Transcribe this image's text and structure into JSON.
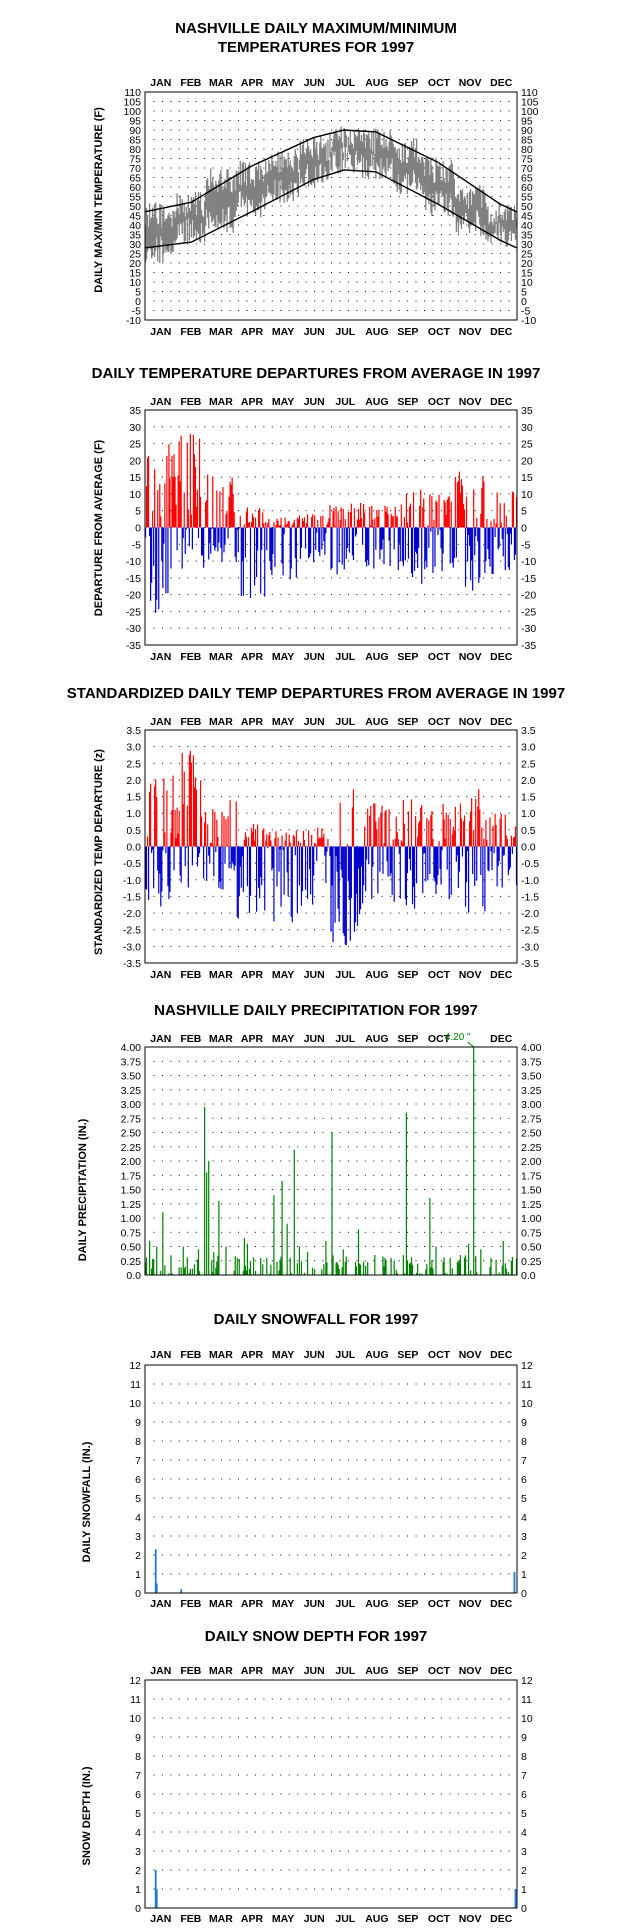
{
  "chart_data": [
    {
      "type": "line",
      "title_lines": [
        "NASHVILLE DAILY MAXIMUM/MINIMUM",
        "TEMPERATURES FOR 1997"
      ],
      "ylabel": "DAILY MAX/MIN TEMPERATURE (F)",
      "ylim": [
        -10,
        110
      ],
      "yticks": [
        "110",
        "105",
        "100",
        "95",
        "90",
        "85",
        "80",
        "75",
        "70",
        "65",
        "60",
        "55",
        "50",
        "45",
        "40",
        "35",
        "30",
        "25",
        "20",
        "15",
        "10",
        "5",
        "0",
        "-5",
        "-10"
      ],
      "months": [
        "JAN",
        "FEB",
        "MAR",
        "APR",
        "MAY",
        "JUN",
        "JUL",
        "AUG",
        "SEP",
        "OCT",
        "NOV",
        "DEC"
      ],
      "grid": true,
      "series": [
        {
          "role": "observed_max_min_range",
          "color": "#808080",
          "monthly_max_approx": [
            52,
            58,
            70,
            74,
            81,
            87,
            92,
            91,
            86,
            76,
            62,
            52
          ],
          "monthly_min_approx": [
            20,
            30,
            36,
            44,
            50,
            60,
            67,
            64,
            56,
            44,
            34,
            28
          ]
        },
        {
          "role": "normal_high",
          "color": "#000000",
          "x_day": [
            1,
            46,
            105,
            166,
            196,
            227,
            288,
            349,
            365
          ],
          "y": [
            47,
            52,
            71,
            86,
            90,
            89,
            73,
            51,
            47
          ]
        },
        {
          "role": "normal_low",
          "color": "#000000",
          "x_day": [
            1,
            46,
            105,
            166,
            196,
            227,
            288,
            349,
            365
          ],
          "y": [
            28,
            31,
            47,
            64,
            69,
            68,
            51,
            32,
            28
          ]
        }
      ]
    },
    {
      "type": "bar",
      "title": "DAILY TEMPERATURE DEPARTURES FROM AVERAGE IN 1997",
      "ylabel": "DEPARTURE FROM AVERAGE (F)",
      "ylim": [
        -35,
        35
      ],
      "yticks": [
        "35",
        "30",
        "25",
        "20",
        "15",
        "10",
        "5",
        "0",
        "-5",
        "-10",
        "-15",
        "-20",
        "-25",
        "-30",
        "-35"
      ],
      "months": [
        "JAN",
        "FEB",
        "MAR",
        "APR",
        "MAY",
        "JUN",
        "JUL",
        "AUG",
        "SEP",
        "OCT",
        "NOV",
        "DEC"
      ],
      "positive_color": "#ff0000",
      "negative_color": "#0000cc",
      "monthly_peak_positive": [
        25,
        29,
        17,
        6,
        3,
        4,
        8,
        7,
        12,
        10,
        18,
        12
      ],
      "monthly_peak_negative": [
        -26,
        -14,
        -12,
        -21,
        -16,
        -12,
        -14,
        -13,
        -17,
        -15,
        -19,
        -14
      ]
    },
    {
      "type": "bar",
      "title": "STANDARDIZED DAILY TEMP DEPARTURES FROM AVERAGE IN 1997",
      "ylabel": "STANDARDIZED TEMP DEPARTURE (z)",
      "ylim": [
        -3.5,
        3.5
      ],
      "yticks": [
        "3.5",
        "3.0",
        "2.5",
        "2.0",
        "1.5",
        "1.0",
        "0.5",
        "0.0",
        "-0.5",
        "-1.0",
        "-1.5",
        "-2.0",
        "-2.5",
        "-3.0",
        "-3.5"
      ],
      "months": [
        "JAN",
        "FEB",
        "MAR",
        "APR",
        "MAY",
        "JUN",
        "JUL",
        "AUG",
        "SEP",
        "OCT",
        "NOV",
        "DEC"
      ],
      "positive_color": "#ff0000",
      "negative_color": "#0000cc",
      "monthly_peak_positive": [
        2.2,
        3.0,
        1.6,
        0.7,
        0.5,
        0.6,
        1.8,
        1.4,
        1.5,
        1.4,
        1.8,
        1.0
      ],
      "monthly_peak_negative": [
        -2.0,
        -1.4,
        -1.3,
        -2.2,
        -2.3,
        -2.0,
        -3.0,
        -1.8,
        -1.9,
        -1.6,
        -2.0,
        -1.3
      ]
    },
    {
      "type": "bar",
      "title": "NASHVILLE DAILY PRECIPITATION FOR 1997",
      "ylabel": "DAILY PRECIPITATION (IN.)",
      "ylim": [
        0,
        4.0
      ],
      "yticks": [
        "4.00",
        "3.75",
        "3.50",
        "3.25",
        "3.00",
        "2.75",
        "2.50",
        "2.25",
        "2.00",
        "1.75",
        "1.50",
        "1.25",
        "1.00",
        "0.75",
        "0.50",
        "0.25",
        "0.0"
      ],
      "months": [
        "JAN",
        "FEB",
        "MAR",
        "APR",
        "MAY",
        "JUN",
        "JUL",
        "AUG",
        "SEP",
        "OCT",
        "NOV",
        "DEC"
      ],
      "color": "#008000",
      "annotation": "4.20 \"",
      "notable_days": [
        {
          "day": 5,
          "value": 0.6
        },
        {
          "day": 12,
          "value": 0.5
        },
        {
          "day": 18,
          "value": 1.1
        },
        {
          "day": 38,
          "value": 0.5
        },
        {
          "day": 53,
          "value": 0.45
        },
        {
          "day": 59,
          "value": 2.95
        },
        {
          "day": 61,
          "value": 1.8
        },
        {
          "day": 63,
          "value": 2.0
        },
        {
          "day": 68,
          "value": 0.4
        },
        {
          "day": 73,
          "value": 1.3
        },
        {
          "day": 80,
          "value": 0.5
        },
        {
          "day": 91,
          "value": 0.3
        },
        {
          "day": 98,
          "value": 0.65
        },
        {
          "day": 101,
          "value": 0.55
        },
        {
          "day": 127,
          "value": 1.4
        },
        {
          "day": 135,
          "value": 1.65
        },
        {
          "day": 140,
          "value": 0.9
        },
        {
          "day": 147,
          "value": 2.2
        },
        {
          "day": 152,
          "value": 0.5
        },
        {
          "day": 160,
          "value": 0.4
        },
        {
          "day": 178,
          "value": 0.6
        },
        {
          "day": 184,
          "value": 2.5
        },
        {
          "day": 195,
          "value": 0.45
        },
        {
          "day": 210,
          "value": 0.8
        },
        {
          "day": 226,
          "value": 0.35
        },
        {
          "day": 236,
          "value": 0.3
        },
        {
          "day": 257,
          "value": 2.85
        },
        {
          "day": 280,
          "value": 1.35
        },
        {
          "day": 286,
          "value": 0.5
        },
        {
          "day": 300,
          "value": 0.3
        },
        {
          "day": 310,
          "value": 0.35
        },
        {
          "day": 318,
          "value": 0.55
        },
        {
          "day": 323,
          "value": 4.2
        },
        {
          "day": 330,
          "value": 0.45
        },
        {
          "day": 340,
          "value": 0.3
        },
        {
          "day": 352,
          "value": 0.6
        },
        {
          "day": 360,
          "value": 0.25
        }
      ]
    },
    {
      "type": "bar",
      "title": "DAILY SNOWFALL FOR 1997",
      "ylabel": "DAILY SNOWFALL (IN.)",
      "ylim": [
        0,
        12
      ],
      "yticks": [
        "12",
        "11",
        "10",
        "9",
        "8",
        "7",
        "6",
        "5",
        "4",
        "3",
        "2",
        "1",
        "0"
      ],
      "months": [
        "JAN",
        "FEB",
        "MAR",
        "APR",
        "MAY",
        "JUN",
        "JUL",
        "AUG",
        "SEP",
        "OCT",
        "NOV",
        "DEC"
      ],
      "color": "#1e78d2",
      "bars": [
        {
          "day": 11,
          "value": 2.3
        },
        {
          "day": 12,
          "value": 0.5
        },
        {
          "day": 36,
          "value": 0.2
        },
        {
          "day": 363,
          "value": 1.1
        }
      ]
    },
    {
      "type": "bar",
      "title": "DAILY SNOW DEPTH FOR 1997",
      "ylabel": "SNOW DEPTH (IN.)",
      "ylim": [
        0,
        12
      ],
      "yticks": [
        "12",
        "11",
        "10",
        "9",
        "8",
        "7",
        "6",
        "5",
        "4",
        "3",
        "2",
        "1",
        "0"
      ],
      "months": [
        "JAN",
        "FEB",
        "MAR",
        "APR",
        "MAY",
        "JUN",
        "JUL",
        "AUG",
        "SEP",
        "OCT",
        "NOV",
        "DEC"
      ],
      "color": "#1e78d2",
      "bars": [
        {
          "day": 11,
          "value": 2.0
        },
        {
          "day": 12,
          "value": 1.0
        },
        {
          "day": 364,
          "value": 1.0
        }
      ]
    }
  ]
}
